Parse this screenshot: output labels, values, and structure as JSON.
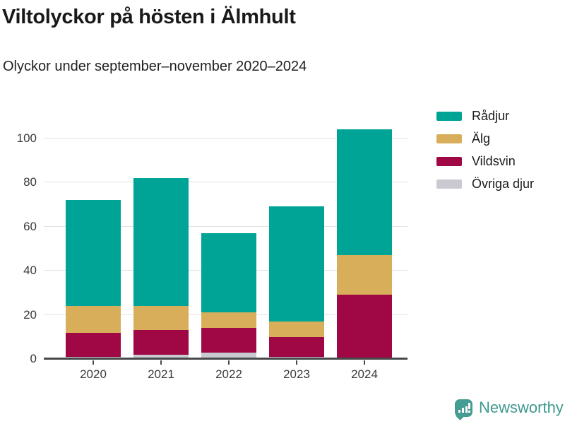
{
  "header": {
    "title": "Viltolyckor på hösten i Älmhult",
    "subtitle": "Olyckor under september–november 2020–2024"
  },
  "chart_data": {
    "type": "bar",
    "stacked": true,
    "title": "Viltolyckor på hösten i Älmhult",
    "subtitle": "Olyckor under september–november 2020–2024",
    "categories": [
      "2020",
      "2021",
      "2022",
      "2023",
      "2024"
    ],
    "series": [
      {
        "name": "Rådjur",
        "color": "#00a497",
        "values": [
          48,
          58,
          36,
          52,
          57
        ]
      },
      {
        "name": "Älg",
        "color": "#d9ae5a",
        "values": [
          12,
          11,
          7,
          7,
          18
        ]
      },
      {
        "name": "Vildsvin",
        "color": "#9f0745",
        "values": [
          11,
          11,
          11,
          9,
          29
        ]
      },
      {
        "name": "Övriga djur",
        "color": "#c9cad1",
        "values": [
          1,
          2,
          3,
          1,
          0
        ]
      }
    ],
    "stack_order_bottom_to_top": [
      "Övriga djur",
      "Vildsvin",
      "Älg",
      "Rådjur"
    ],
    "totals": [
      72,
      82,
      57,
      69,
      104
    ],
    "xlabel": "",
    "ylabel": "",
    "yticks": [
      0,
      20,
      40,
      60,
      80,
      100
    ],
    "ylim": [
      0,
      105
    ],
    "grid": true,
    "legend_position": "right"
  },
  "branding": {
    "logo_text": "Newsworthy",
    "logo_icon": "bar-chart-speech-bubble-icon",
    "brand_color": "#3f998f"
  }
}
